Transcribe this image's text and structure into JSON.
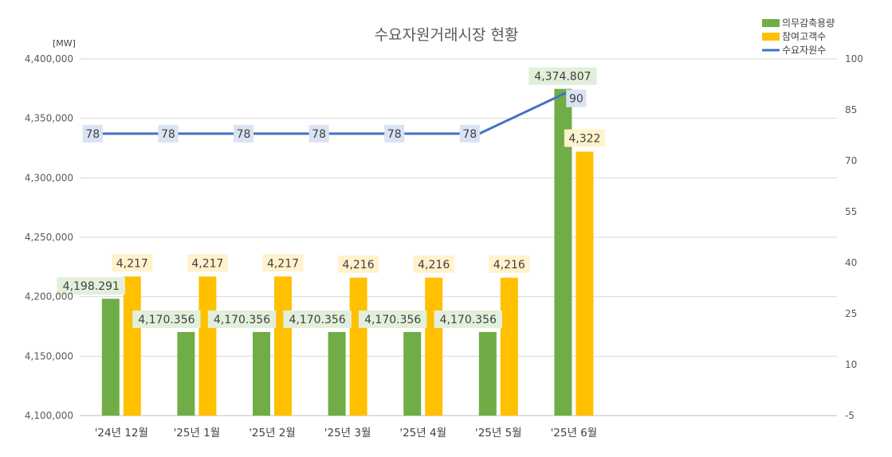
{
  "chart_data": {
    "type": "bar",
    "title": "수요자원거래시장 현황",
    "y_unit": "[MW]",
    "categories": [
      "'24년 12월",
      "'25년 1월",
      "'25년 2월",
      "'25년 3월",
      "'25년 4월",
      "'25년 5월",
      "'25년 6월"
    ],
    "series": [
      {
        "name": "의무감축용량",
        "kind": "bar",
        "axis": "left",
        "color": "#70ad47",
        "label_bg": "#e2efda",
        "values": [
          4198.291,
          4170.356,
          4170.356,
          4170.356,
          4170.356,
          4170.356,
          4374.807
        ],
        "labels": [
          "4,198.291",
          "4,170.356",
          "4,170.356",
          "4,170.356",
          "4,170.356",
          "4,170.356",
          "4,374.807"
        ]
      },
      {
        "name": "참여고객수",
        "kind": "bar",
        "axis": "left",
        "color": "#ffc000",
        "label_bg": "#fff2cc",
        "values": [
          4217,
          4217,
          4217,
          4216,
          4216,
          4216,
          4322
        ],
        "labels": [
          "4,217",
          "4,217",
          "4,217",
          "4,216",
          "4,216",
          "4,216",
          "4,322"
        ]
      },
      {
        "name": "수요자원수",
        "kind": "line",
        "axis": "right",
        "color": "#4472c4",
        "label_bg": "#dae3f3",
        "values": [
          78,
          78,
          78,
          78,
          78,
          78,
          90
        ],
        "labels": [
          "78",
          "78",
          "78",
          "78",
          "78",
          "78",
          "90"
        ]
      }
    ],
    "left_axis": {
      "ylim": [
        4100,
        4400
      ],
      "ticks": [
        4100,
        4150,
        4200,
        4250,
        4300,
        4350,
        4400
      ],
      "tick_labels": [
        "4,100,000",
        "4,150,000",
        "4,200,000",
        "4,250,000",
        "4,300,000",
        "4,350,000",
        "4,400,000"
      ]
    },
    "right_axis": {
      "ylim": [
        -5,
        100
      ],
      "ticks": [
        -5,
        10,
        25,
        40,
        55,
        70,
        85,
        100
      ],
      "tick_labels": [
        "-5",
        "10",
        "25",
        "40",
        "55",
        "70",
        "85",
        "100"
      ]
    },
    "grid": true,
    "legend_position": "top-right"
  }
}
